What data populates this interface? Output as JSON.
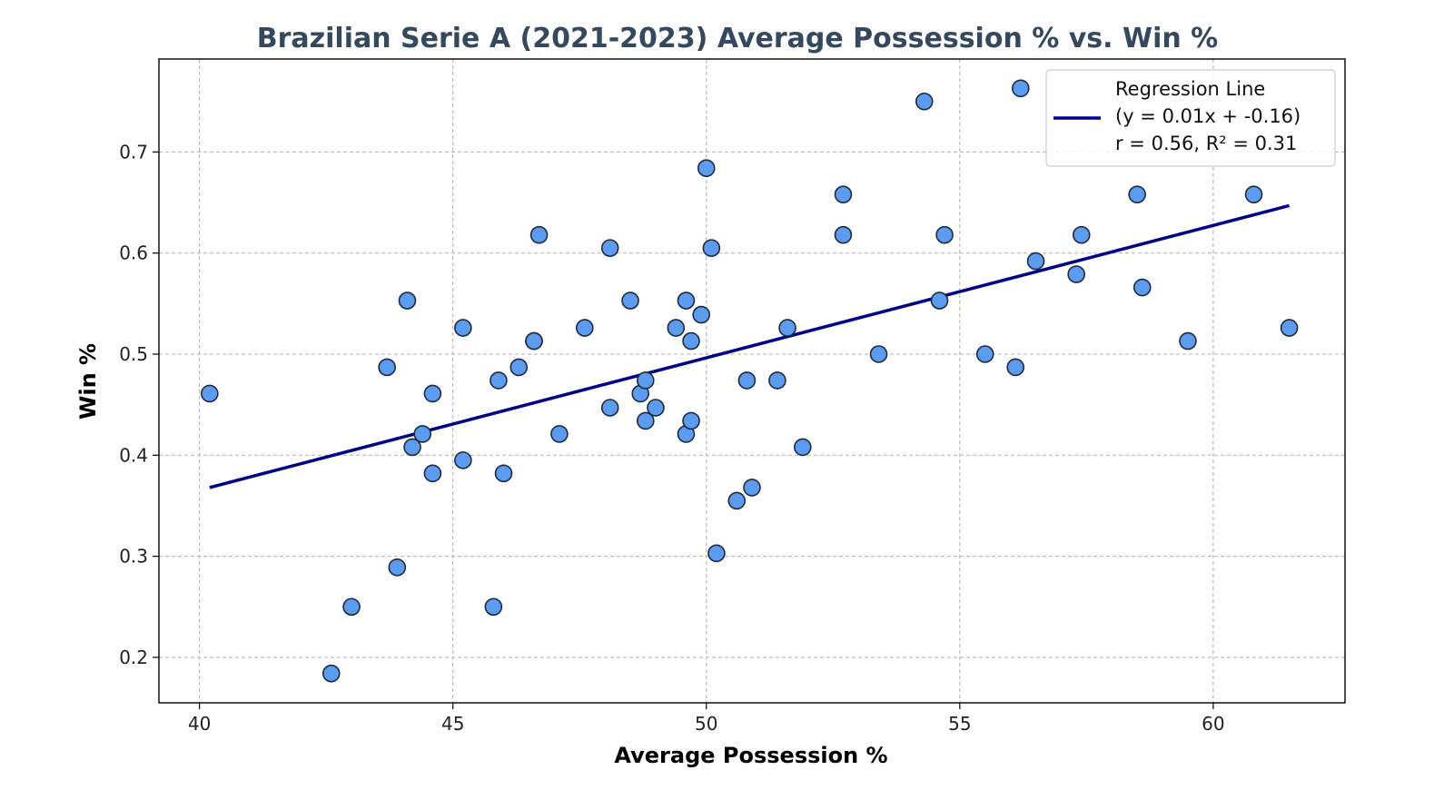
{
  "chart_data": {
    "type": "scatter",
    "title": "Brazilian Serie A (2021-2023) Average Possession % vs. Win %",
    "xlabel": "Average Possession %",
    "ylabel": "Win %",
    "xlim": [
      39.2,
      62.6
    ],
    "ylim": [
      0.155,
      0.792
    ],
    "xticks": [
      40,
      45,
      50,
      55,
      60
    ],
    "yticks": [
      0.2,
      0.3,
      0.4,
      0.5,
      0.6,
      0.7
    ],
    "xtick_labels": [
      "40",
      "45",
      "50",
      "55",
      "60"
    ],
    "ytick_labels": [
      "0.2",
      "0.3",
      "0.4",
      "0.5",
      "0.6",
      "0.7"
    ],
    "grid": true,
    "legend_position": "top-right",
    "series": [
      {
        "points": [
          [
            40.2,
            0.461
          ],
          [
            42.6,
            0.184
          ],
          [
            43.0,
            0.25
          ],
          [
            43.7,
            0.487
          ],
          [
            43.9,
            0.289
          ],
          [
            44.1,
            0.553
          ],
          [
            44.2,
            0.408
          ],
          [
            44.4,
            0.421
          ],
          [
            44.6,
            0.461
          ],
          [
            44.6,
            0.382
          ],
          [
            45.2,
            0.526
          ],
          [
            45.2,
            0.395
          ],
          [
            45.8,
            0.25
          ],
          [
            45.9,
            0.474
          ],
          [
            46.0,
            0.382
          ],
          [
            46.3,
            0.487
          ],
          [
            46.6,
            0.513
          ],
          [
            46.6,
            0.513
          ],
          [
            46.7,
            0.618
          ],
          [
            47.1,
            0.421
          ],
          [
            47.6,
            0.526
          ],
          [
            48.1,
            0.605
          ],
          [
            48.1,
            0.447
          ],
          [
            48.5,
            0.553
          ],
          [
            48.7,
            0.461
          ],
          [
            48.8,
            0.474
          ],
          [
            48.8,
            0.434
          ],
          [
            49.0,
            0.447
          ],
          [
            49.4,
            0.526
          ],
          [
            49.6,
            0.553
          ],
          [
            49.6,
            0.421
          ],
          [
            49.7,
            0.513
          ],
          [
            49.7,
            0.434
          ],
          [
            49.9,
            0.539
          ],
          [
            50.0,
            0.684
          ],
          [
            50.1,
            0.605
          ],
          [
            50.2,
            0.303
          ],
          [
            50.6,
            0.355
          ],
          [
            50.8,
            0.474
          ],
          [
            50.9,
            0.368
          ],
          [
            51.4,
            0.474
          ],
          [
            51.6,
            0.526
          ],
          [
            51.9,
            0.408
          ],
          [
            52.7,
            0.658
          ],
          [
            52.7,
            0.618
          ],
          [
            53.4,
            0.5
          ],
          [
            54.3,
            0.75
          ],
          [
            54.6,
            0.553
          ],
          [
            54.7,
            0.618
          ],
          [
            55.5,
            0.5
          ],
          [
            56.1,
            0.487
          ],
          [
            56.2,
            0.763
          ],
          [
            56.5,
            0.592
          ],
          [
            57.3,
            0.579
          ],
          [
            57.4,
            0.618
          ],
          [
            58.5,
            0.658
          ],
          [
            58.6,
            0.566
          ],
          [
            59.5,
            0.513
          ],
          [
            60.8,
            0.658
          ],
          [
            61.5,
            0.526
          ]
        ],
        "color": "#5b9bf0"
      }
    ],
    "regression": {
      "x_range": [
        40.2,
        61.5
      ],
      "y_range": [
        0.368,
        0.647
      ],
      "color": "#00008b",
      "legend_lines": [
        "Regression Line",
        "(y = 0.01x + -0.16)",
        "r = 0.56, R² = 0.31"
      ]
    }
  }
}
